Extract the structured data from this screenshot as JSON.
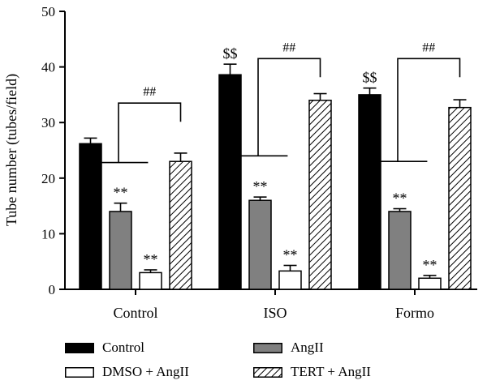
{
  "chart_data": {
    "type": "bar",
    "title": "",
    "xlabel": "",
    "ylabel": "Tube number (tubes/field)",
    "ylim": [
      0,
      50
    ],
    "yticks": [
      0,
      10,
      20,
      30,
      40,
      50
    ],
    "grid": false,
    "legend_position": "bottom",
    "categories": [
      "Control",
      "ISO",
      "Formo"
    ],
    "series": [
      {
        "name": "Control",
        "fill": "#000000",
        "pattern": "solid",
        "values": [
          26.2,
          38.6,
          35.0
        ],
        "errors": [
          1.0,
          1.9,
          1.2
        ],
        "marks": [
          "",
          "$$",
          "$$"
        ]
      },
      {
        "name": "AngII",
        "fill": "#808080",
        "pattern": "solid",
        "values": [
          14.0,
          16.0,
          14.0
        ],
        "errors": [
          1.5,
          0.6,
          0.5
        ],
        "marks": [
          "**",
          "**",
          "**"
        ]
      },
      {
        "name": "DMSO + AngII",
        "fill": "#ffffff",
        "pattern": "solid",
        "values": [
          3.0,
          3.3,
          2.0
        ],
        "errors": [
          0.5,
          1.0,
          0.5
        ],
        "marks": [
          "**",
          "**",
          "**"
        ]
      },
      {
        "name": "TERT + AngII",
        "fill": "#ffffff",
        "pattern": "hatch",
        "values": [
          23.0,
          34.0,
          32.7
        ],
        "errors": [
          1.5,
          1.2,
          1.4
        ],
        "marks": [
          "",
          "",
          ""
        ]
      }
    ],
    "comparison_brackets": [
      {
        "category": "Control",
        "label": "##",
        "bottom_value": 22.8,
        "top_value": 33.5
      },
      {
        "category": "ISO",
        "label": "##",
        "bottom_value": 24.0,
        "top_value": 41.5
      },
      {
        "category": "Formo",
        "label": "##",
        "bottom_value": 23.0,
        "top_value": 41.5
      }
    ]
  }
}
